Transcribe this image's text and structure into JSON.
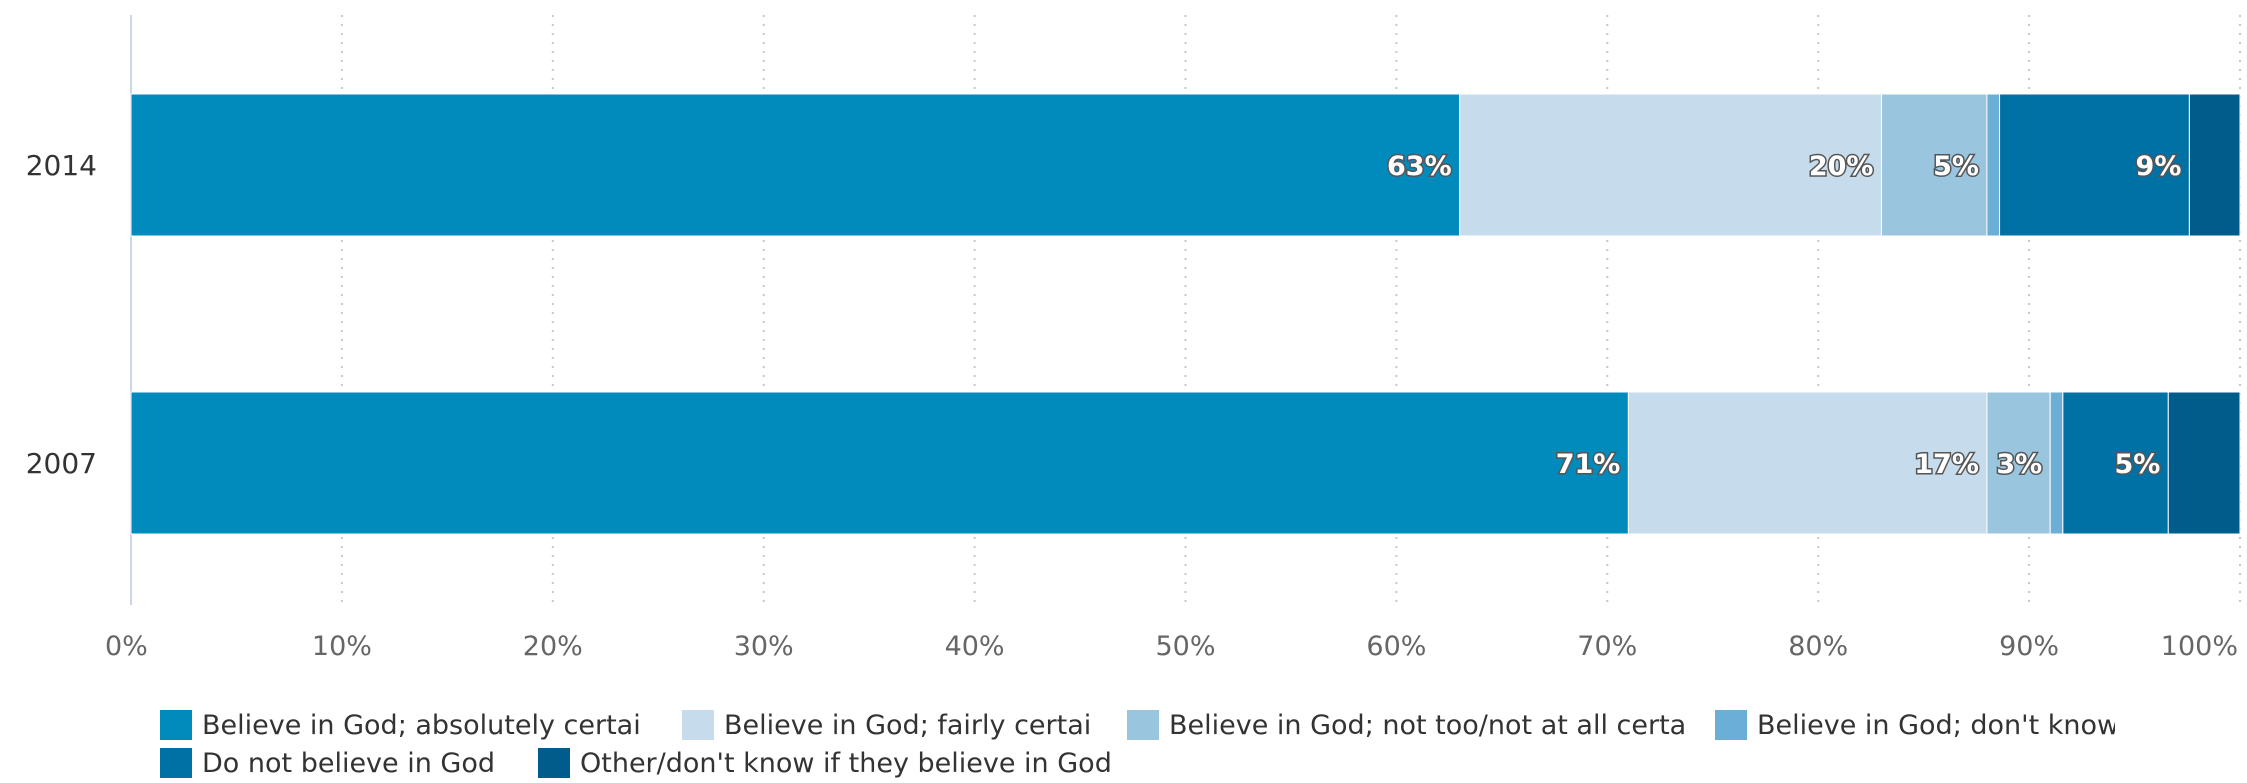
{
  "chart_data": {
    "type": "bar",
    "orientation": "horizontal",
    "stacked": true,
    "categories": [
      "2014",
      "2007"
    ],
    "series": [
      {
        "name": "Believe in God; absolutely certain",
        "legend_text": "Believe in God; absolutely certai",
        "color": "#008bbc",
        "values": [
          63,
          71
        ],
        "labels": [
          "63%",
          "71%"
        ]
      },
      {
        "name": "Believe in God; fairly certain",
        "legend_text": "Believe in God; fairly certai",
        "color": "#c6dcec",
        "values": [
          20,
          17
        ],
        "labels": [
          "20%",
          "17%"
        ]
      },
      {
        "name": "Believe in God; not too/not at all certain",
        "legend_text": "Believe in God; not too/not at all certa",
        "color": "#99c5df",
        "values": [
          5,
          3
        ],
        "labels": [
          "5%",
          "3%"
        ]
      },
      {
        "name": "Believe in God; don't know",
        "legend_text": "Believe in God; don't know",
        "color": "#6baed6",
        "values": [
          0.6,
          0.6
        ],
        "labels": [
          "",
          ""
        ]
      },
      {
        "name": "Do not believe in God",
        "legend_text": "Do not believe in God",
        "color": "#0071a4",
        "values": [
          9,
          5
        ],
        "labels": [
          "9%",
          "5%"
        ]
      },
      {
        "name": "Other/don't know if they believe in God",
        "legend_text": "Other/don't know if they believe in God",
        "color": "#005c8a",
        "values": [
          2.4,
          3.4
        ],
        "labels": [
          "",
          ""
        ]
      }
    ],
    "xlim": [
      0,
      100
    ],
    "x_ticks": [
      "0%",
      "10%",
      "20%",
      "30%",
      "40%",
      "50%",
      "60%",
      "70%",
      "80%",
      "90%",
      "100%"
    ],
    "grid": true,
    "legend_position": "bottom"
  }
}
